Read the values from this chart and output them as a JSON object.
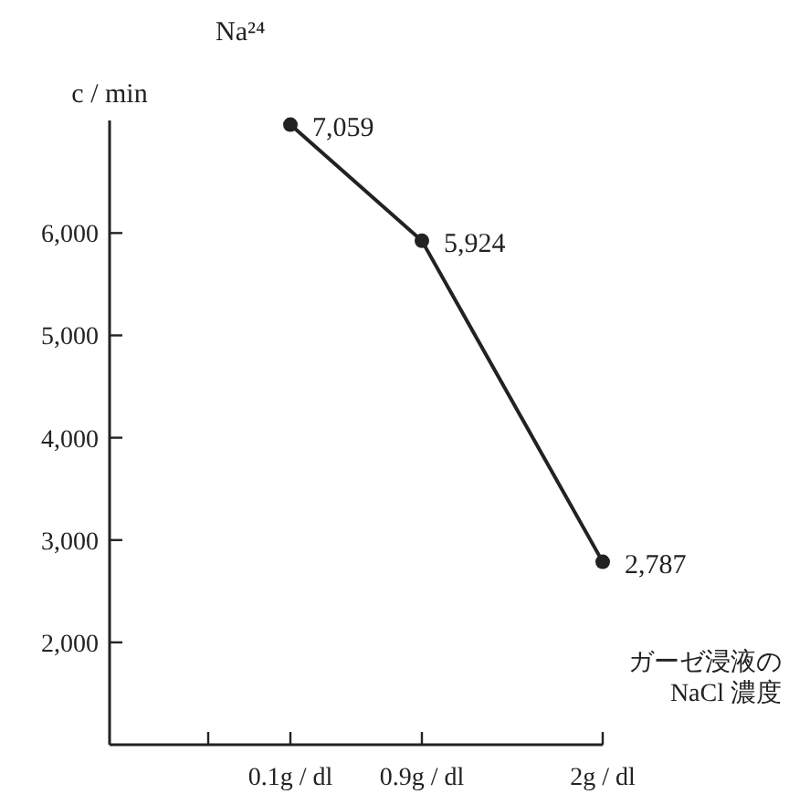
{
  "chart_data": {
    "type": "line",
    "title": "Na²⁴",
    "ylabel": "c / min",
    "xlabel": "ガーゼ浸液の\nNaCl 濃度",
    "x": [
      0.1,
      0.9,
      2
    ],
    "series": [
      {
        "color": "#222222",
        "values": [
          7059,
          5924,
          2787
        ],
        "value_labels": [
          "7,059",
          "5,924",
          "2,787"
        ]
      }
    ],
    "xlim": [
      -1,
      2
    ],
    "xticks": [
      {
        "value": -0.4,
        "label": null
      },
      {
        "value": 0.1,
        "label": "0.1g / dl"
      },
      {
        "value": 0.9,
        "label": "0.9g / dl"
      },
      {
        "value": 2,
        "label": "2g / dl"
      }
    ],
    "ylim": [
      1000,
      7100
    ],
    "yticks": [
      {
        "value": 2000,
        "label": "2,000"
      },
      {
        "value": 3000,
        "label": "3,000"
      },
      {
        "value": 4000,
        "label": "4,000"
      },
      {
        "value": 5000,
        "label": "5,000"
      },
      {
        "value": 6000,
        "label": "6,000"
      }
    ],
    "marker": "circle",
    "line_style": "solid",
    "grid": false
  }
}
